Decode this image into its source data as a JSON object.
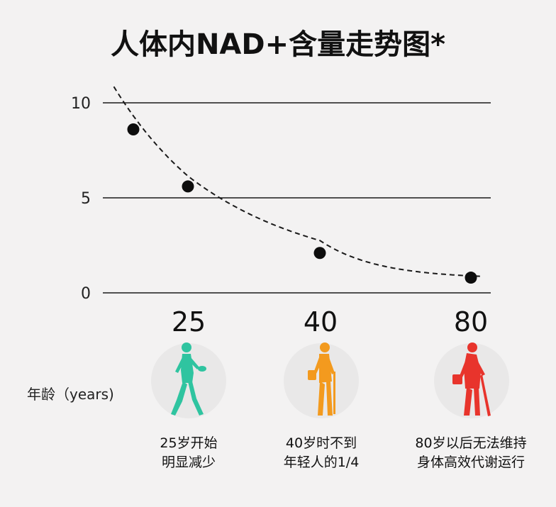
{
  "chart_data": {
    "type": "line",
    "title": "人体内NAD+含量走势图*",
    "y_ticks": [
      "10",
      "5",
      "0"
    ],
    "ylim": [
      0,
      10
    ],
    "grid": true,
    "points": [
      {
        "x": 18,
        "y": 8.6
      },
      {
        "x": 25,
        "y": 5.6
      },
      {
        "x": 40,
        "y": 2.1
      },
      {
        "x": 80,
        "y": 0.8
      }
    ],
    "curve_style": "dashed",
    "age_labels": [
      "25",
      "40",
      "80"
    ],
    "x_axis_name": "年龄（years)",
    "captions": [
      {
        "line1": "25岁开始",
        "line2": "明显减少",
        "color": "#2fc4a0"
      },
      {
        "line1": "40岁时不到",
        "line2": "年轻人的1/4",
        "color": "#f39a1e"
      },
      {
        "line1": "80岁以后无法维持",
        "line2": "身体高效代谢运行",
        "color": "#e8342c"
      }
    ]
  }
}
